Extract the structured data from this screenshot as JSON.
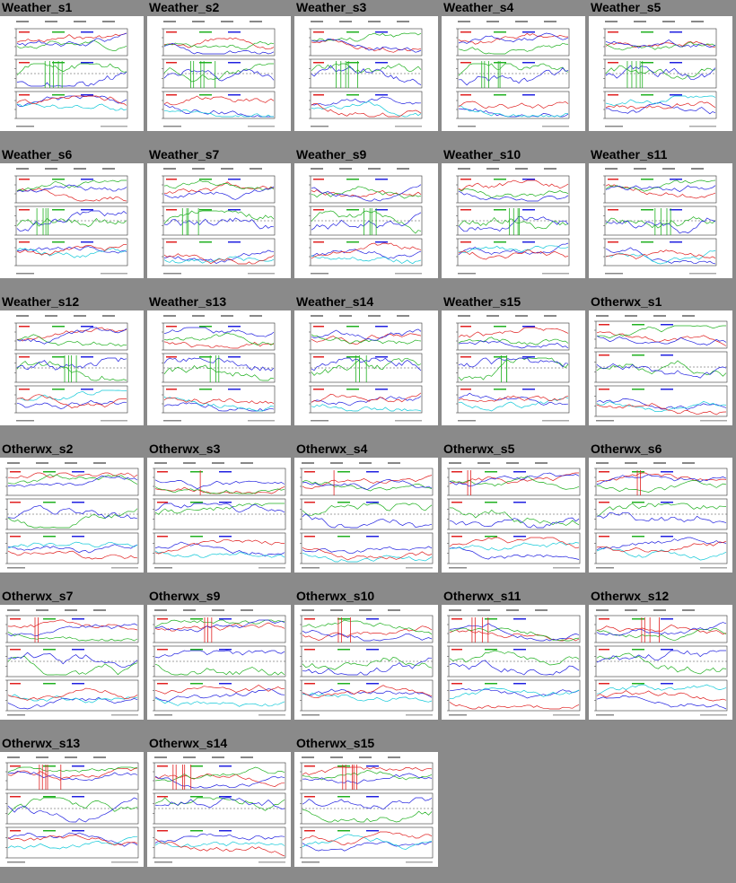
{
  "gallery": {
    "items": [
      {
        "label": "Weather_s1",
        "kind": "weather"
      },
      {
        "label": "Weather_s2",
        "kind": "weather"
      },
      {
        "label": "Weather_s3",
        "kind": "weather"
      },
      {
        "label": "Weather_s4",
        "kind": "weather"
      },
      {
        "label": "Weather_s5",
        "kind": "weather"
      },
      {
        "label": "Weather_s6",
        "kind": "weather"
      },
      {
        "label": "Weather_s7",
        "kind": "weather"
      },
      {
        "label": "Weather_s9",
        "kind": "weather"
      },
      {
        "label": "Weather_s10",
        "kind": "weather"
      },
      {
        "label": "Weather_s11",
        "kind": "weather"
      },
      {
        "label": "Weather_s12",
        "kind": "weather"
      },
      {
        "label": "Weather_s13",
        "kind": "weather"
      },
      {
        "label": "Weather_s14",
        "kind": "weather"
      },
      {
        "label": "Weather_s15",
        "kind": "weather"
      },
      {
        "label": "Otherwx_s1",
        "kind": "otherwx"
      },
      {
        "label": "Otherwx_s2",
        "kind": "otherwx"
      },
      {
        "label": "Otherwx_s3",
        "kind": "otherwx"
      },
      {
        "label": "Otherwx_s4",
        "kind": "otherwx"
      },
      {
        "label": "Otherwx_s5",
        "kind": "otherwx"
      },
      {
        "label": "Otherwx_s6",
        "kind": "otherwx"
      },
      {
        "label": "Otherwx_s7",
        "kind": "otherwx"
      },
      {
        "label": "Otherwx_s9",
        "kind": "otherwx"
      },
      {
        "label": "Otherwx_s10",
        "kind": "otherwx"
      },
      {
        "label": "Otherwx_s11",
        "kind": "otherwx"
      },
      {
        "label": "Otherwx_s12",
        "kind": "otherwx"
      },
      {
        "label": "Otherwx_s13",
        "kind": "otherwx"
      },
      {
        "label": "Otherwx_s14",
        "kind": "otherwx"
      },
      {
        "label": "Otherwx_s15",
        "kind": "otherwx"
      }
    ]
  },
  "colors": {
    "background": "#8a8a8a",
    "thumbnail": "#ffffff",
    "series": [
      "#e02020",
      "#20b020",
      "#2020e0",
      "#10c8d8",
      "#e020e0",
      "#000000"
    ]
  }
}
